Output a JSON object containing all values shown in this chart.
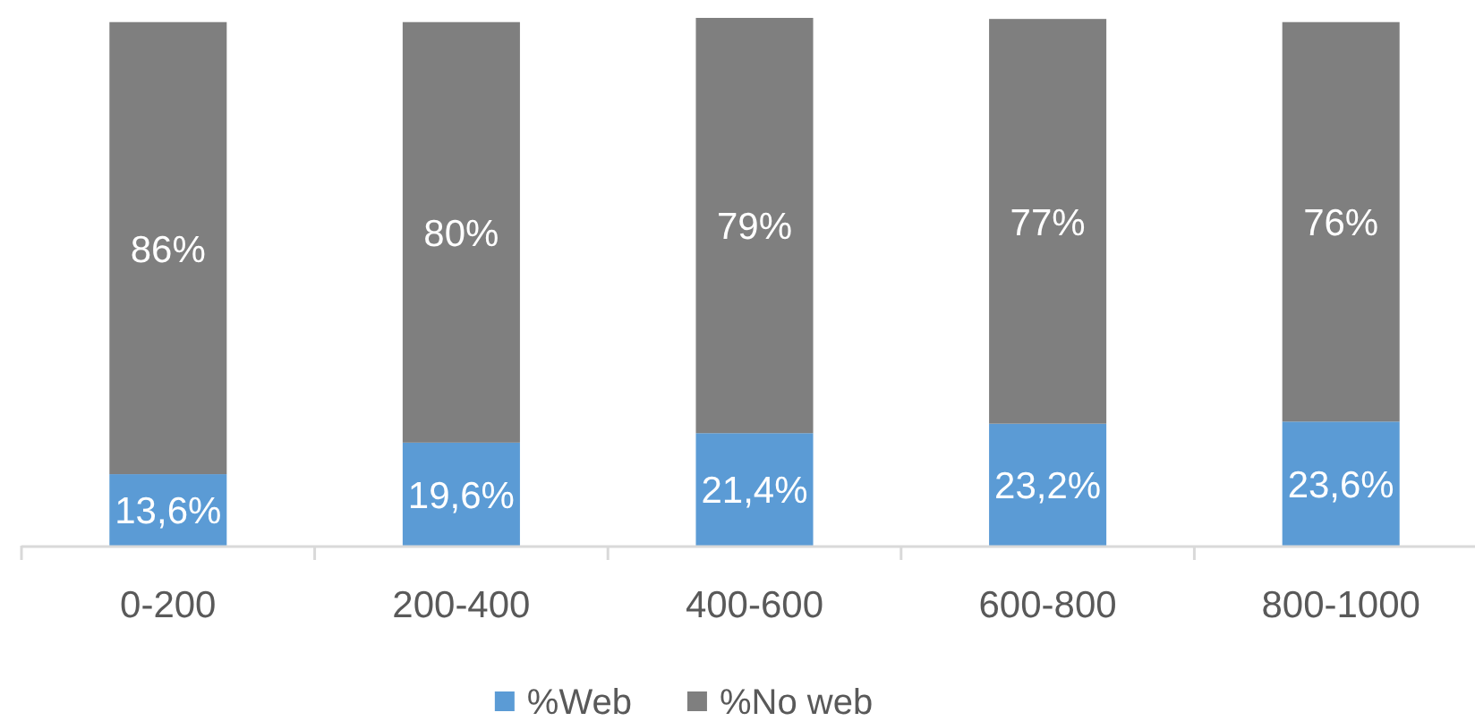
{
  "chart_data": {
    "type": "bar",
    "stacked": true,
    "categories": [
      "0-200",
      "200-400",
      "400-600",
      "600-800",
      "800-1000"
    ],
    "series": [
      {
        "name": "%Web",
        "color": "#5b9bd5",
        "values": [
          13.6,
          19.6,
          21.4,
          23.2,
          23.6
        ],
        "value_labels": [
          "13,6%",
          "19,6%",
          "21,4%",
          "23,2%",
          "23,6%"
        ]
      },
      {
        "name": "%No web",
        "color": "#7f7f7f",
        "values": [
          86,
          80,
          79,
          77,
          76
        ],
        "value_labels": [
          "86%",
          "80%",
          "79%",
          "77%",
          "76%"
        ]
      }
    ],
    "legend": "bottom"
  }
}
